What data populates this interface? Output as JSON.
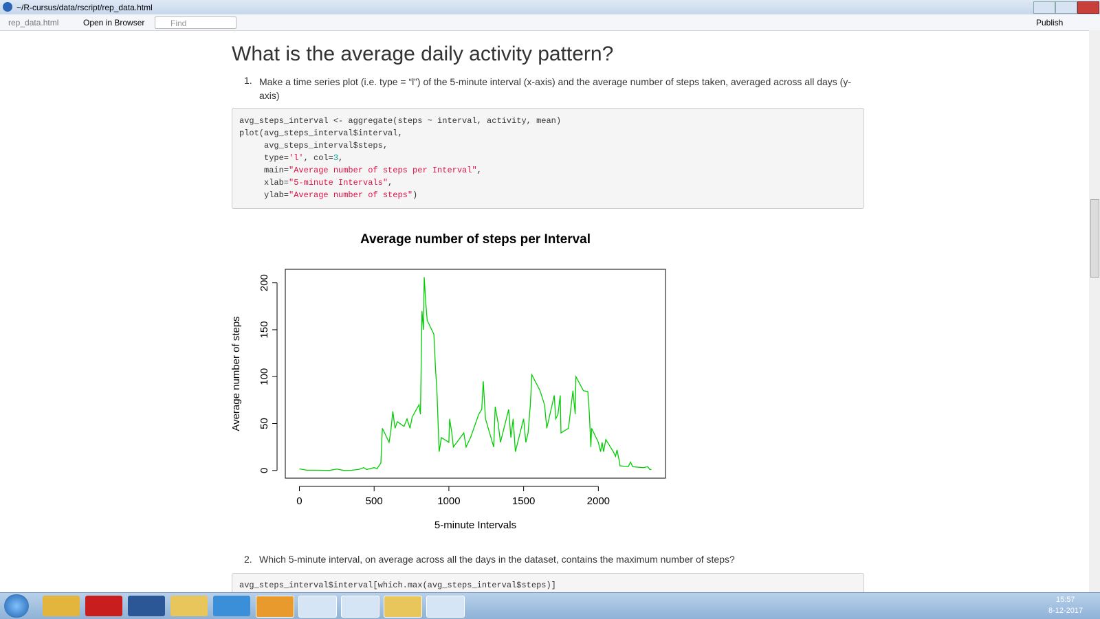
{
  "window": {
    "title": "~/R-cursus/data/rscript/rep_data.html"
  },
  "toolbar": {
    "tab": "rep_data.html",
    "open": "Open in Browser",
    "find": "Find",
    "publish": "Publish"
  },
  "content": {
    "heading": "What is the average daily activity pattern?",
    "items": [
      {
        "number": "1.",
        "text": "Make a time series plot (i.e. type = “l”) of the 5-minute interval (x-axis) and the average number of steps taken, averaged across all days (y-axis)"
      },
      {
        "number": "2.",
        "text": "Which 5-minute interval, on average across all the days in the dataset, contains the maximum number of steps?"
      }
    ],
    "code_blocks": [
      [
        "avg_steps_interval <- aggregate(steps ~ interval, activity, mean)",
        "plot(avg_steps_interval$interval,",
        "     avg_steps_interval$steps,",
        "     type='l', col=3,",
        "     main=\"Average number of steps per Interval\",",
        "     xlab=\"5-minute Intervals\",",
        "     ylab=\"Average number of steps\")"
      ],
      [
        "avg_steps_interval$interval[which.max(avg_steps_interval$steps)]"
      ]
    ]
  },
  "chart_data": {
    "type": "line",
    "title": "Average number of steps per Interval",
    "xlabel": "5-minute Intervals",
    "ylabel": "Average number of steps",
    "x": [
      0,
      50,
      100,
      150,
      200,
      250,
      300,
      350,
      400,
      430,
      450,
      500,
      520,
      545,
      555,
      600,
      610,
      625,
      640,
      655,
      700,
      720,
      740,
      755,
      800,
      810,
      820,
      830,
      835,
      845,
      855,
      900,
      910,
      920,
      935,
      950,
      1000,
      1005,
      1020,
      1030,
      1100,
      1115,
      1145,
      1200,
      1220,
      1230,
      1245,
      1300,
      1310,
      1330,
      1345,
      1400,
      1415,
      1430,
      1445,
      1500,
      1515,
      1530,
      1545,
      1555,
      1610,
      1640,
      1655,
      1705,
      1715,
      1730,
      1745,
      1750,
      1800,
      1830,
      1845,
      1850,
      1900,
      1930,
      1940,
      1950,
      1955,
      2000,
      2015,
      2025,
      2035,
      2050,
      2100,
      2115,
      2125,
      2140,
      2145,
      2200,
      2215,
      2230,
      2300,
      2330,
      2345,
      2355
    ],
    "series": [
      {
        "color": "#00cd00",
        "values": [
          1.7,
          0.3,
          0.3,
          0.2,
          0,
          1.5,
          0,
          0.2,
          1.2,
          3,
          1,
          3,
          2,
          8,
          45,
          30,
          40,
          63,
          45,
          52,
          47,
          55,
          45,
          57,
          70,
          60,
          170,
          150,
          206,
          180,
          160,
          145,
          110,
          85,
          20,
          35,
          30,
          55,
          40,
          25,
          40,
          25,
          35,
          60,
          65,
          95,
          55,
          25,
          68,
          50,
          30,
          65,
          35,
          55,
          20,
          55,
          30,
          40,
          70,
          102,
          85,
          70,
          45,
          80,
          55,
          60,
          80,
          40,
          45,
          85,
          60,
          100,
          85,
          84,
          60,
          25,
          45,
          30,
          20,
          30,
          20,
          33,
          20,
          15,
          22,
          10,
          5,
          4,
          9,
          4,
          3,
          4,
          1,
          1
        ]
      }
    ],
    "xlim": [
      -94.2,
      2449.2
    ],
    "ylim": [
      -8.2,
      214.4
    ],
    "xticks": [
      0,
      500,
      1000,
      1500,
      2000
    ],
    "yticks": [
      0,
      50,
      100,
      150,
      200
    ]
  },
  "taskbar": {
    "time": "15:57",
    "date": "8-12-2017"
  }
}
